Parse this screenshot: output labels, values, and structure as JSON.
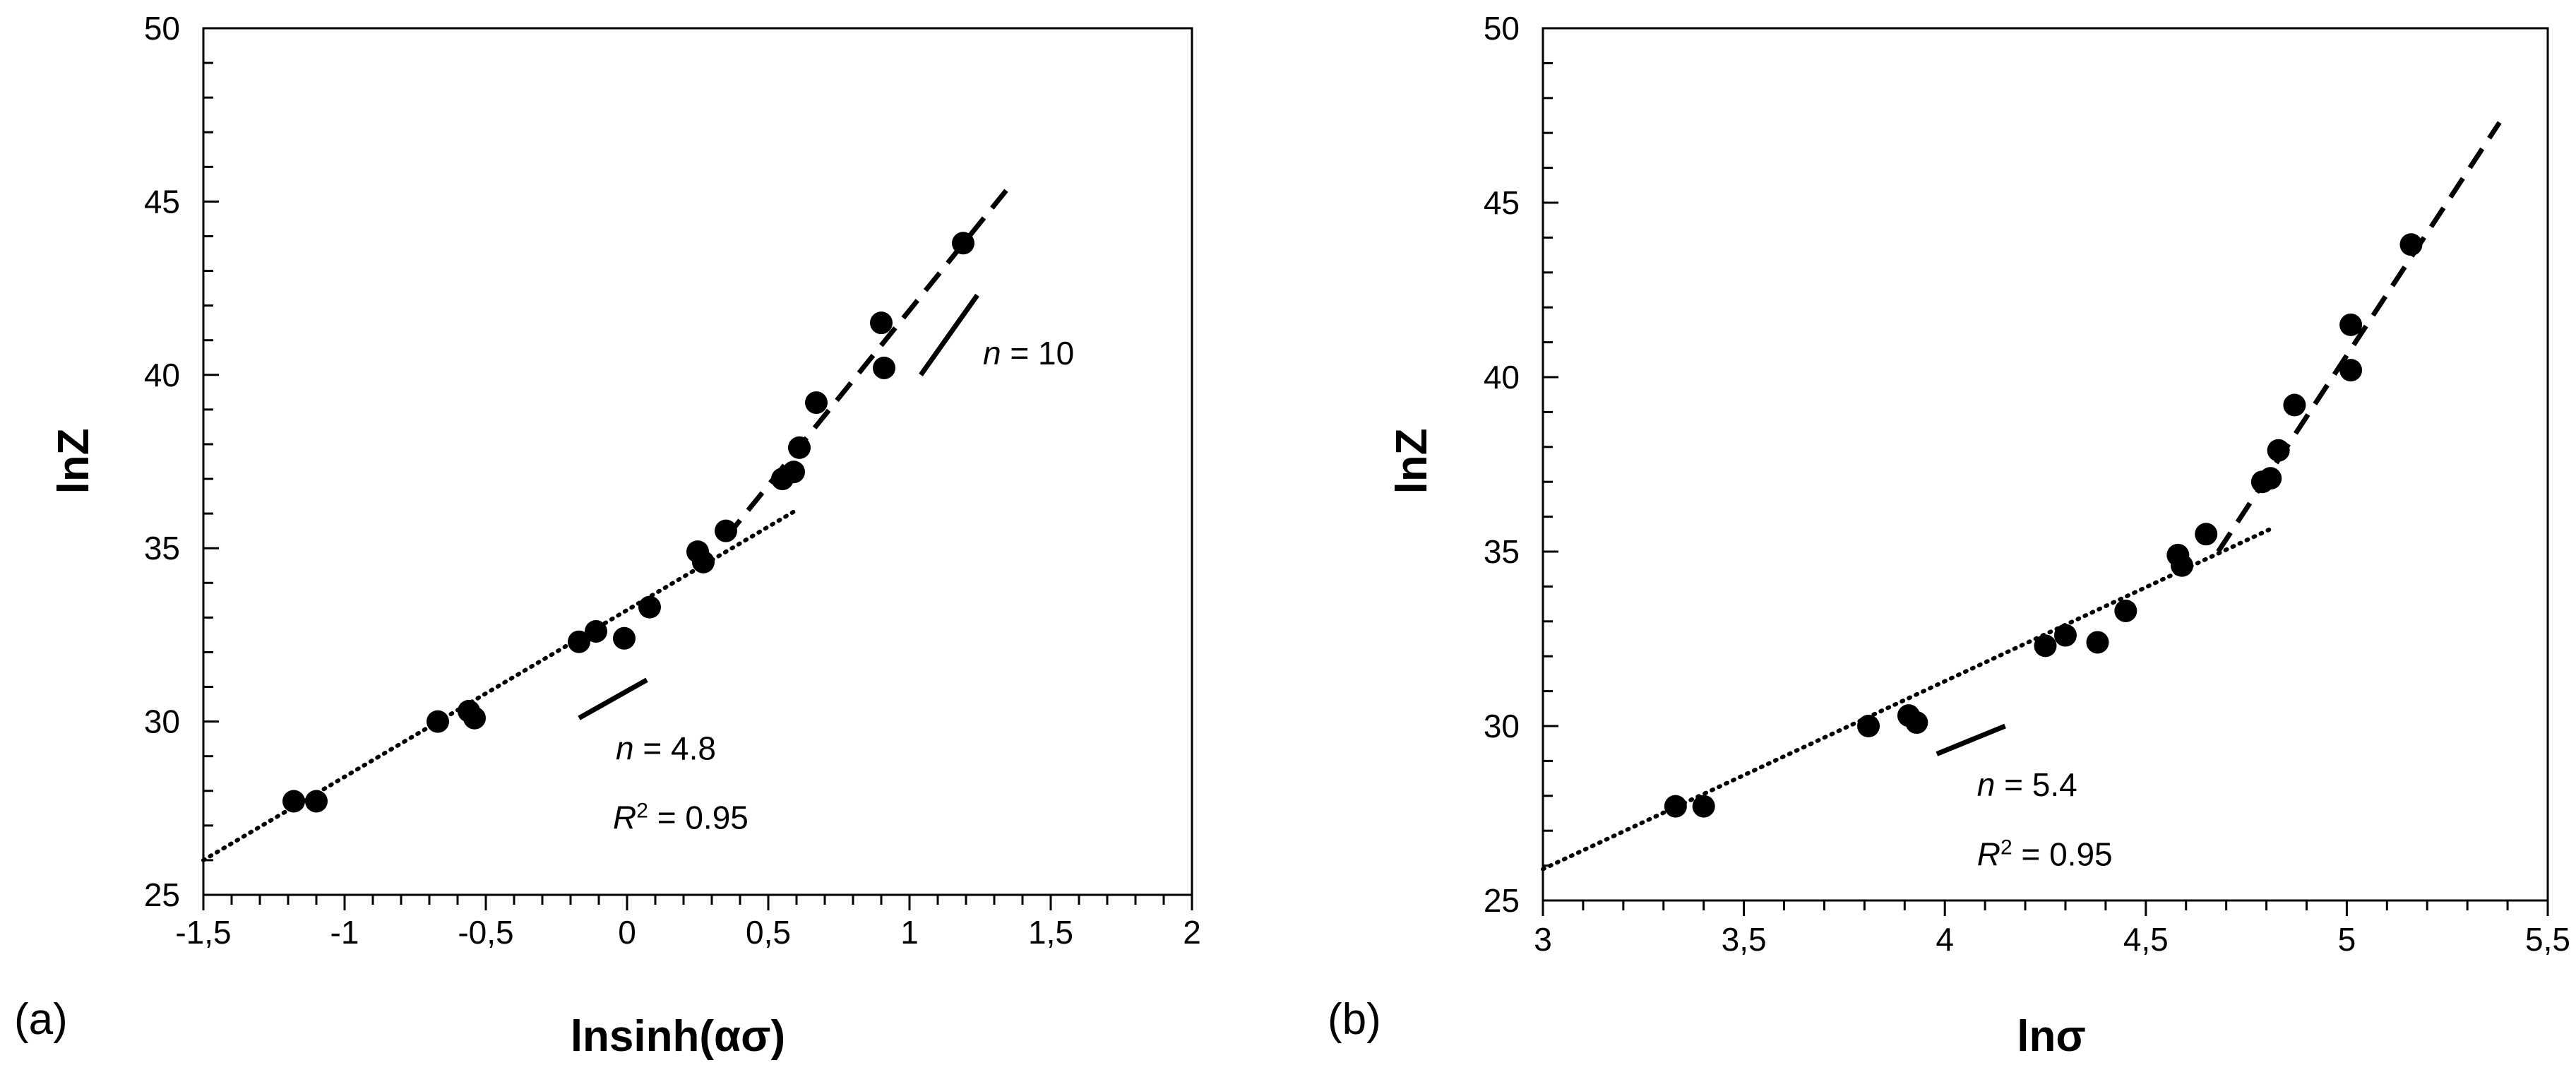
{
  "chart_data": [
    {
      "type": "scatter",
      "panel_label": "(a)",
      "xlabel": "lnsinh(ασ)",
      "ylabel": "lnZ",
      "xlim": [
        -1.5,
        2
      ],
      "ylim": [
        25,
        50
      ],
      "xticks": [
        -1.5,
        -1,
        -0.5,
        0,
        0.5,
        1,
        1.5,
        2
      ],
      "xtick_labels": [
        "-1,5",
        "-1",
        "-0,5",
        "0",
        "0,5",
        "1",
        "1,5",
        "2"
      ],
      "yticks": [
        25,
        30,
        35,
        40,
        45,
        50
      ],
      "ytick_labels": [
        "25",
        "30",
        "35",
        "40",
        "45",
        "50"
      ],
      "grid": false,
      "points": [
        {
          "x": -1.18,
          "y": 27.7
        },
        {
          "x": -1.1,
          "y": 27.7
        },
        {
          "x": -0.67,
          "y": 30.0
        },
        {
          "x": -0.56,
          "y": 30.3
        },
        {
          "x": -0.54,
          "y": 30.1
        },
        {
          "x": -0.17,
          "y": 32.3
        },
        {
          "x": -0.11,
          "y": 32.6
        },
        {
          "x": -0.01,
          "y": 32.4
        },
        {
          "x": 0.08,
          "y": 33.3
        },
        {
          "x": 0.25,
          "y": 34.9
        },
        {
          "x": 0.27,
          "y": 34.6
        },
        {
          "x": 0.35,
          "y": 35.5
        },
        {
          "x": 0.55,
          "y": 37.0
        },
        {
          "x": 0.59,
          "y": 37.2
        },
        {
          "x": 0.61,
          "y": 37.9
        },
        {
          "x": 0.67,
          "y": 39.2
        },
        {
          "x": 0.9,
          "y": 41.5
        },
        {
          "x": 0.91,
          "y": 40.2
        },
        {
          "x": 1.19,
          "y": 43.8
        }
      ],
      "fits": [
        {
          "style": "dotted",
          "x": [
            -1.5,
            0.6
          ],
          "y": [
            26.0,
            36.1
          ]
        },
        {
          "style": "dashed",
          "x": [
            0.35,
            1.37
          ],
          "y": [
            35.3,
            45.6
          ]
        }
      ],
      "slope_markers": [
        {
          "x": [
            -0.17,
            0.07
          ],
          "y": [
            30.1,
            31.2
          ]
        },
        {
          "x": [
            1.04,
            1.24
          ],
          "y": [
            40.0,
            42.3
          ]
        }
      ],
      "annotations": [
        {
          "var": "n",
          "text": " = 10",
          "x": 1.26,
          "y": 40.3
        },
        {
          "var": "n",
          "text": " = 4.8",
          "x": -0.04,
          "y": 28.9
        },
        {
          "var": "R",
          "sup": "2",
          "text": " = 0.95",
          "x": -0.05,
          "y": 26.9
        }
      ]
    },
    {
      "type": "scatter",
      "panel_label": "(b)",
      "xlabel": "lnσ",
      "ylabel": "lnZ",
      "xlim": [
        3,
        5.5
      ],
      "ylim": [
        25,
        50
      ],
      "xticks": [
        3,
        3.5,
        4,
        4.5,
        5,
        5.5
      ],
      "xtick_labels": [
        "3",
        "3,5",
        "4",
        "4,5",
        "5",
        "5,5"
      ],
      "yticks": [
        25,
        30,
        35,
        40,
        45,
        50
      ],
      "ytick_labels": [
        "25",
        "30",
        "35",
        "40",
        "45",
        "50"
      ],
      "grid": false,
      "points": [
        {
          "x": 3.33,
          "y": 27.7
        },
        {
          "x": 3.4,
          "y": 27.7
        },
        {
          "x": 3.81,
          "y": 30.0
        },
        {
          "x": 3.91,
          "y": 30.3
        },
        {
          "x": 3.93,
          "y": 30.1
        },
        {
          "x": 4.25,
          "y": 32.3
        },
        {
          "x": 4.3,
          "y": 32.6
        },
        {
          "x": 4.38,
          "y": 32.4
        },
        {
          "x": 4.45,
          "y": 33.3
        },
        {
          "x": 4.58,
          "y": 34.9
        },
        {
          "x": 4.59,
          "y": 34.6
        },
        {
          "x": 4.65,
          "y": 35.5
        },
        {
          "x": 4.79,
          "y": 37.0
        },
        {
          "x": 4.81,
          "y": 37.1
        },
        {
          "x": 4.83,
          "y": 37.9
        },
        {
          "x": 4.87,
          "y": 39.2
        },
        {
          "x": 5.01,
          "y": 41.5
        },
        {
          "x": 5.01,
          "y": 40.2
        },
        {
          "x": 5.16,
          "y": 43.8
        }
      ],
      "fits": [
        {
          "style": "dotted",
          "x": [
            3.0,
            4.82
          ],
          "y": [
            25.9,
            35.7
          ]
        },
        {
          "style": "dashed",
          "x": [
            4.68,
            5.38
          ],
          "y": [
            35.0,
            47.3
          ]
        }
      ],
      "slope_markers": [
        {
          "x": [
            3.98,
            4.15
          ],
          "y": [
            29.2,
            30.0
          ]
        }
      ],
      "annotations": [
        {
          "var": "n",
          "text": " = 5.4",
          "x": 4.08,
          "y": 28.0
        },
        {
          "var": "R",
          "sup": "2",
          "text": " = 0.95",
          "x": 4.08,
          "y": 26.0
        }
      ]
    }
  ]
}
